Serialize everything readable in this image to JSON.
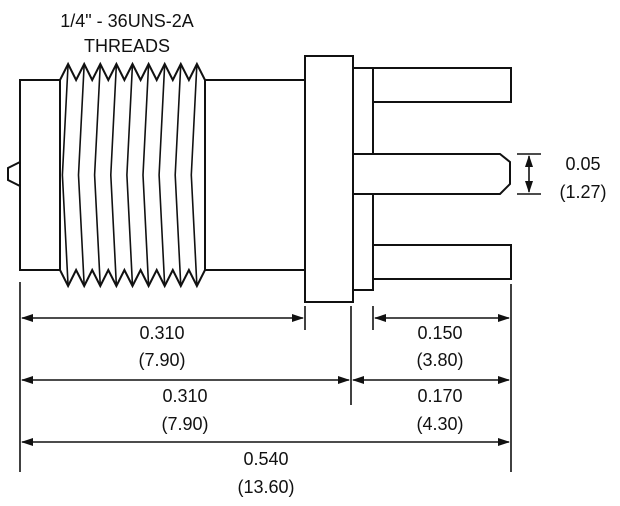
{
  "thread_note": {
    "line1": "1/4\" - 36UNS-2A",
    "line2": "THREADS"
  },
  "pin_spacing": {
    "inch": "0.05",
    "mm": "(1.27)"
  },
  "dimensions": {
    "body_to_flange": {
      "inch": "0.310",
      "mm": "(7.90)"
    },
    "pin_length": {
      "inch": "0.150",
      "mm": "(3.80)"
    },
    "body_to_mount_face": {
      "inch": "0.310",
      "mm": "(7.90)"
    },
    "mount_face_to_pin_end": {
      "inch": "0.170",
      "mm": "(4.30)"
    },
    "overall_length": {
      "inch": "0.540",
      "mm": "(13.60)"
    }
  },
  "colors": {
    "ink": "#111111",
    "paper": "#ffffff"
  }
}
